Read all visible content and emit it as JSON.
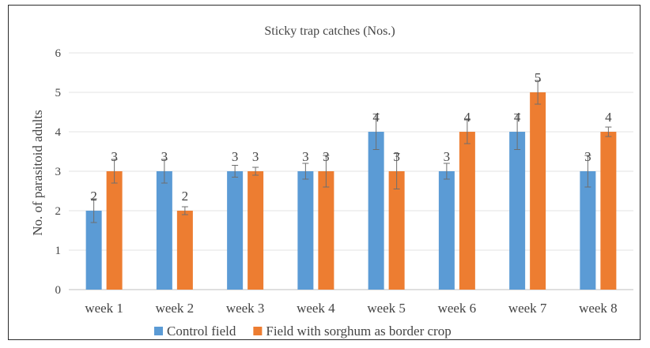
{
  "chart_data": {
    "type": "bar",
    "title": "Sticky trap catches (Nos.)",
    "xlabel": "",
    "ylabel": "No. of parasitoid adults",
    "ylim": [
      0,
      6
    ],
    "yticks": [
      0,
      1,
      2,
      3,
      4,
      5,
      6
    ],
    "grid": "horizontal",
    "legend_position": "bottom",
    "categories": [
      "week 1",
      "week 2",
      "week 3",
      "week 4",
      "week 5",
      "week 6",
      "week 7",
      "week 8"
    ],
    "series": [
      {
        "name": "Control field",
        "color": "#5b9bd5",
        "values": [
          2,
          3,
          3,
          3,
          4,
          3,
          4,
          3
        ],
        "labels": [
          "2",
          "3",
          "3",
          "3",
          "4",
          "3",
          "4",
          "3"
        ],
        "error": [
          0.3,
          0.3,
          0.15,
          0.2,
          0.45,
          0.2,
          0.45,
          0.4
        ]
      },
      {
        "name": "Field with sorghum as border crop",
        "color": "#ed7d31",
        "values": [
          3,
          2,
          3,
          3,
          3,
          4,
          5,
          4
        ],
        "labels": [
          "3",
          "2",
          "3",
          "3",
          "3",
          "4",
          "5",
          "4"
        ],
        "error": [
          0.3,
          0.1,
          0.1,
          0.4,
          0.45,
          0.3,
          0.3,
          0.12
        ]
      }
    ]
  }
}
